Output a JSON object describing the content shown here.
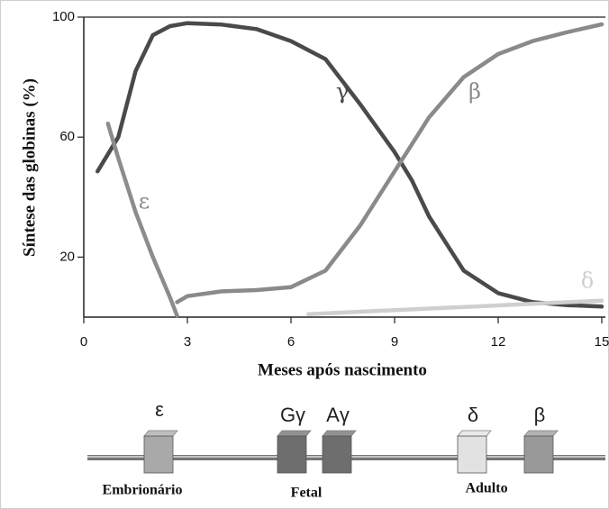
{
  "chart_data": {
    "type": "line",
    "x_label": "Meses após nascimento",
    "y_label": "Síntese das globinas (%)",
    "xlim": [
      0,
      15
    ],
    "xticks": [
      0,
      3,
      6,
      9,
      12,
      15
    ],
    "ylim": [
      0,
      100
    ],
    "yticks": [
      20,
      60,
      100
    ],
    "series": [
      {
        "name": "γ",
        "color": "#4a4a4a",
        "x": [
          0.4,
          1,
          1.5,
          2,
          2.5,
          3,
          4,
          5,
          6,
          7,
          8,
          9,
          9.5,
          10,
          11,
          12,
          13,
          14,
          15
        ],
        "values": [
          48.6,
          60,
          82,
          94,
          97,
          98,
          97.5,
          96,
          92,
          86,
          71,
          55,
          45.6,
          33.5,
          15.5,
          8,
          5,
          4,
          3.5
        ]
      },
      {
        "name": "β",
        "color": "#8a8a8a",
        "x": [
          2.7,
          3,
          4,
          5,
          6,
          7,
          8,
          9,
          9.5,
          10,
          11,
          12,
          13,
          14,
          15
        ],
        "values": [
          5,
          7,
          8.6,
          9,
          10,
          15.5,
          30.5,
          48.6,
          57.6,
          66.6,
          80,
          87.7,
          92,
          95,
          97.6
        ]
      },
      {
        "name": "ε",
        "color": "#8c8c8c",
        "x": [
          0.7,
          1,
          1.5,
          2,
          2.5,
          2.7
        ],
        "values": [
          64.5,
          53,
          35,
          20,
          6.5,
          0.5
        ]
      },
      {
        "name": "δ",
        "color": "#cfcfcf",
        "x": [
          6.5,
          15
        ],
        "values": [
          1,
          5.5
        ]
      }
    ]
  },
  "gene_diagram": {
    "genes": [
      {
        "label": "ε",
        "color": "#a9a9a9"
      },
      {
        "label": "Gγ",
        "color": "#6e6e6e"
      },
      {
        "label": "Aγ",
        "color": "#6e6e6e"
      },
      {
        "label": "δ",
        "color": "#e2e2e2"
      },
      {
        "label": "β",
        "color": "#999999"
      }
    ],
    "groups": [
      {
        "label": "Embrionário"
      },
      {
        "label": "Fetal"
      },
      {
        "label": "Adulto"
      }
    ]
  }
}
